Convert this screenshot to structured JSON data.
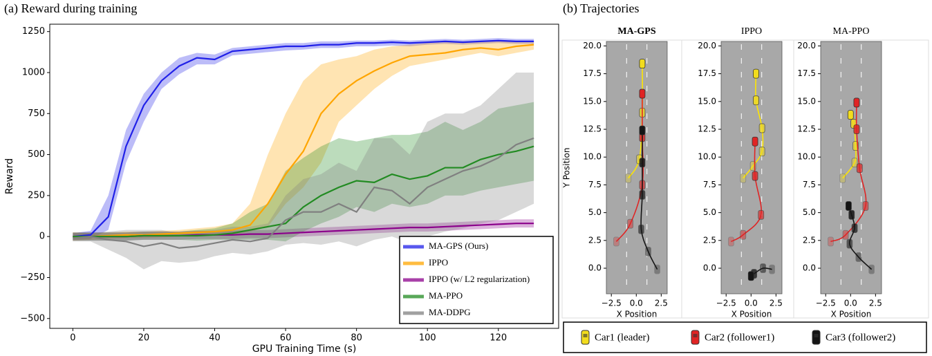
{
  "chart_data": [
    {
      "type": "line",
      "title": "(a) Reward during training",
      "xlabel": "GPU Training Time (s)",
      "ylabel": "Reward",
      "xlim": [
        -6.5,
        137
      ],
      "ylim": [
        -560,
        1295
      ],
      "xticks": [
        0,
        20,
        40,
        60,
        80,
        100,
        120
      ],
      "yticks": [
        {
          "value": -500,
          "label": "−500"
        },
        {
          "value": -250,
          "label": "−250"
        },
        0,
        250,
        500,
        750,
        1000,
        1250
      ],
      "legend": "lower right",
      "x": [
        0,
        5,
        10,
        15,
        20,
        25,
        30,
        35,
        40,
        45,
        50,
        55,
        60,
        65,
        70,
        75,
        80,
        85,
        90,
        95,
        100,
        105,
        110,
        115,
        120,
        125,
        130
      ],
      "series": [
        {
          "name": "MA-GPS (Ours)",
          "color": "#2020e8",
          "values": [
            0,
            10,
            120,
            550,
            800,
            950,
            1040,
            1090,
            1080,
            1130,
            1140,
            1150,
            1160,
            1160,
            1170,
            1170,
            1180,
            1180,
            1185,
            1180,
            1185,
            1190,
            1185,
            1190,
            1195,
            1190,
            1190
          ],
          "lower": [
            -20,
            -15,
            40,
            450,
            700,
            900,
            990,
            1050,
            1050,
            1105,
            1115,
            1125,
            1135,
            1140,
            1150,
            1150,
            1160,
            1160,
            1165,
            1160,
            1170,
            1175,
            1170,
            1175,
            1180,
            1175,
            1175
          ],
          "upper": [
            20,
            35,
            250,
            650,
            870,
            1000,
            1090,
            1120,
            1110,
            1150,
            1160,
            1170,
            1180,
            1180,
            1190,
            1190,
            1195,
            1195,
            1200,
            1195,
            1200,
            1205,
            1200,
            1205,
            1210,
            1205,
            1205
          ]
        },
        {
          "name": "IPPO",
          "color": "#ffa500",
          "values": [
            0,
            0,
            5,
            10,
            10,
            15,
            20,
            25,
            30,
            40,
            70,
            200,
            380,
            520,
            750,
            870,
            950,
            1010,
            1060,
            1100,
            1110,
            1120,
            1140,
            1150,
            1140,
            1160,
            1170
          ],
          "lower": [
            -25,
            -20,
            -15,
            -10,
            -10,
            -5,
            0,
            0,
            5,
            10,
            30,
            60,
            200,
            300,
            450,
            700,
            800,
            900,
            980,
            1040,
            1060,
            1080,
            1100,
            1120,
            1100,
            1120,
            1140
          ],
          "upper": [
            25,
            20,
            25,
            30,
            30,
            35,
            40,
            50,
            60,
            80,
            200,
            500,
            750,
            950,
            1050,
            1080,
            1100,
            1140,
            1160,
            1170,
            1180,
            1185,
            1190,
            1190,
            1190,
            1190,
            1190
          ]
        },
        {
          "name": "IPPO (w/ L2 regularization)",
          "color": "#8b008b",
          "values": [
            0,
            0,
            0,
            0,
            5,
            5,
            5,
            10,
            10,
            10,
            15,
            15,
            20,
            25,
            30,
            35,
            40,
            45,
            50,
            55,
            55,
            60,
            65,
            70,
            75,
            80,
            80
          ],
          "lower": [
            -25,
            -25,
            -25,
            -25,
            -20,
            -20,
            -20,
            -15,
            -15,
            -15,
            -10,
            -10,
            -5,
            0,
            5,
            10,
            15,
            20,
            25,
            30,
            30,
            35,
            40,
            45,
            50,
            55,
            55
          ],
          "upper": [
            25,
            25,
            25,
            25,
            30,
            30,
            30,
            35,
            35,
            35,
            40,
            40,
            45,
            50,
            55,
            60,
            65,
            70,
            75,
            80,
            80,
            85,
            90,
            95,
            100,
            105,
            105
          ]
        },
        {
          "name": "MA-PPO",
          "color": "#228b22",
          "values": [
            0,
            0,
            0,
            0,
            5,
            5,
            5,
            5,
            10,
            20,
            40,
            60,
            80,
            180,
            250,
            300,
            340,
            330,
            380,
            350,
            370,
            420,
            420,
            470,
            500,
            520,
            550
          ],
          "lower": [
            -25,
            -25,
            -25,
            -25,
            -20,
            -20,
            -20,
            -25,
            -20,
            -20,
            -20,
            -20,
            -30,
            30,
            80,
            120,
            180,
            150,
            200,
            180,
            200,
            250,
            250,
            280,
            300,
            320,
            340
          ],
          "upper": [
            25,
            25,
            25,
            25,
            30,
            30,
            30,
            40,
            50,
            80,
            150,
            200,
            400,
            480,
            550,
            600,
            580,
            600,
            620,
            620,
            640,
            700,
            650,
            700,
            780,
            800,
            820
          ]
        },
        {
          "name": "MA-DDPG",
          "color": "#808080",
          "values": [
            -10,
            0,
            -20,
            -30,
            -60,
            -40,
            -70,
            -60,
            -40,
            -20,
            -30,
            -10,
            100,
            150,
            150,
            200,
            150,
            300,
            280,
            200,
            300,
            350,
            400,
            430,
            480,
            560,
            600
          ],
          "lower": [
            -30,
            -30,
            -80,
            -130,
            -200,
            -150,
            -160,
            -150,
            -120,
            -100,
            -110,
            -90,
            -50,
            -40,
            -50,
            -30,
            -60,
            -20,
            0,
            -40,
            0,
            30,
            50,
            80,
            100,
            150,
            200
          ],
          "upper": [
            20,
            20,
            30,
            40,
            40,
            40,
            20,
            30,
            40,
            60,
            60,
            80,
            250,
            350,
            380,
            450,
            400,
            600,
            600,
            500,
            700,
            750,
            750,
            800,
            900,
            1000,
            1000
          ]
        }
      ]
    },
    {
      "type": "trajectory",
      "title": "MA-GPS",
      "title_bold": true,
      "xlabel": "X Position",
      "ylabel": "Y Position",
      "xlim": [
        -3,
        3.1
      ],
      "ylim": [
        -2.3,
        20.4
      ],
      "xticks": [
        {
          "value": -2.5,
          "label": "−2.5"
        },
        {
          "value": 0,
          "label": "0.0"
        },
        2.5
      ],
      "yticks": [
        {
          "value": 0,
          "label": "0.0"
        },
        2.5,
        {
          "value": 5,
          "label": "5.0"
        },
        7.5,
        {
          "value": 10,
          "label": "10.0"
        },
        12.5,
        {
          "value": 15,
          "label": "15.0"
        },
        17.5,
        {
          "value": 20,
          "label": "20.0"
        }
      ],
      "series": [
        {
          "x": [
            -0.8,
            0.3,
            0.6,
            0.6
          ],
          "y": [
            8.1,
            9.8,
            14.0,
            18.4
          ]
        },
        {
          "x": [
            -2.0,
            -0.6,
            0.6,
            0.6,
            0.6
          ],
          "y": [
            2.4,
            4.0,
            7.5,
            11.8,
            15.7
          ]
        },
        {
          "x": [
            2.1,
            1.2,
            0.5,
            0.6,
            0.6,
            0.6
          ],
          "y": [
            -0.1,
            1.5,
            3.5,
            6.6,
            9.5,
            12.4
          ]
        }
      ]
    },
    {
      "type": "trajectory",
      "title": "IPPO",
      "xlabel": "X Position",
      "xlim": [
        -3,
        3.1
      ],
      "ylim": [
        -2.3,
        20.4
      ],
      "xticks": [
        {
          "value": -2.5,
          "label": "−2.5"
        },
        {
          "value": 0,
          "label": "0.0"
        },
        2.5
      ],
      "yticks": [
        {
          "value": 0,
          "label": "0.0"
        },
        2.5,
        {
          "value": 5,
          "label": "5.0"
        },
        7.5,
        {
          "value": 10,
          "label": "10.0"
        },
        12.5,
        {
          "value": 15,
          "label": "15.0"
        },
        17.5,
        {
          "value": 20,
          "label": "20.0"
        }
      ],
      "series": [
        {
          "x": [
            -0.8,
            0.2,
            1.1,
            1.1,
            0.5,
            0.5
          ],
          "y": [
            8.1,
            9.2,
            10.5,
            12.6,
            15.1,
            17.5
          ]
        },
        {
          "x": [
            -2.0,
            -0.8,
            1.0,
            0.4,
            0.4
          ],
          "y": [
            2.4,
            3.0,
            4.8,
            8.3,
            11.4
          ]
        },
        {
          "x": [
            2.1,
            1.2,
            0.3,
            0.0
          ],
          "y": [
            -0.1,
            0.0,
            -0.5,
            -0.7
          ]
        }
      ]
    },
    {
      "type": "trajectory",
      "title": "MA-PPO",
      "xlabel": "X Position",
      "xlim": [
        -3,
        3.1
      ],
      "ylim": [
        -2.3,
        20.4
      ],
      "xticks": [
        {
          "value": -2.5,
          "label": "−2.5"
        },
        {
          "value": 0,
          "label": "0.0"
        },
        2.5
      ],
      "yticks": [
        {
          "value": 0,
          "label": "0.0"
        },
        2.5,
        {
          "value": 5,
          "label": "5.0"
        },
        7.5,
        {
          "value": 10,
          "label": "10.0"
        },
        12.5,
        {
          "value": 15,
          "label": "15.0"
        },
        17.5,
        {
          "value": 20,
          "label": "20.0"
        }
      ],
      "series": [
        {
          "x": [
            -0.8,
            0.4,
            0.5,
            0.3,
            0.0
          ],
          "y": [
            8.1,
            9.5,
            11.0,
            13.0,
            13.8
          ]
        },
        {
          "x": [
            -2.0,
            -0.5,
            1.5,
            0.9,
            0.6,
            0.6
          ],
          "y": [
            2.4,
            3.0,
            5.6,
            9.0,
            12.5,
            14.9
          ]
        },
        {
          "x": [
            2.1,
            0.8,
            -0.1,
            0.4,
            0.1,
            -0.2
          ],
          "y": [
            -0.1,
            1.0,
            2.2,
            3.6,
            4.8,
            5.6
          ]
        }
      ]
    }
  ],
  "trajectories": {
    "title": "(b) Trajectories",
    "legend": [
      {
        "name": "Car1 (leader)",
        "color": "#f2dc1e"
      },
      {
        "name": "Car2 (follower1)",
        "color": "#e02424"
      },
      {
        "name": "Car3 (follower2)",
        "color": "#151515"
      }
    ]
  }
}
